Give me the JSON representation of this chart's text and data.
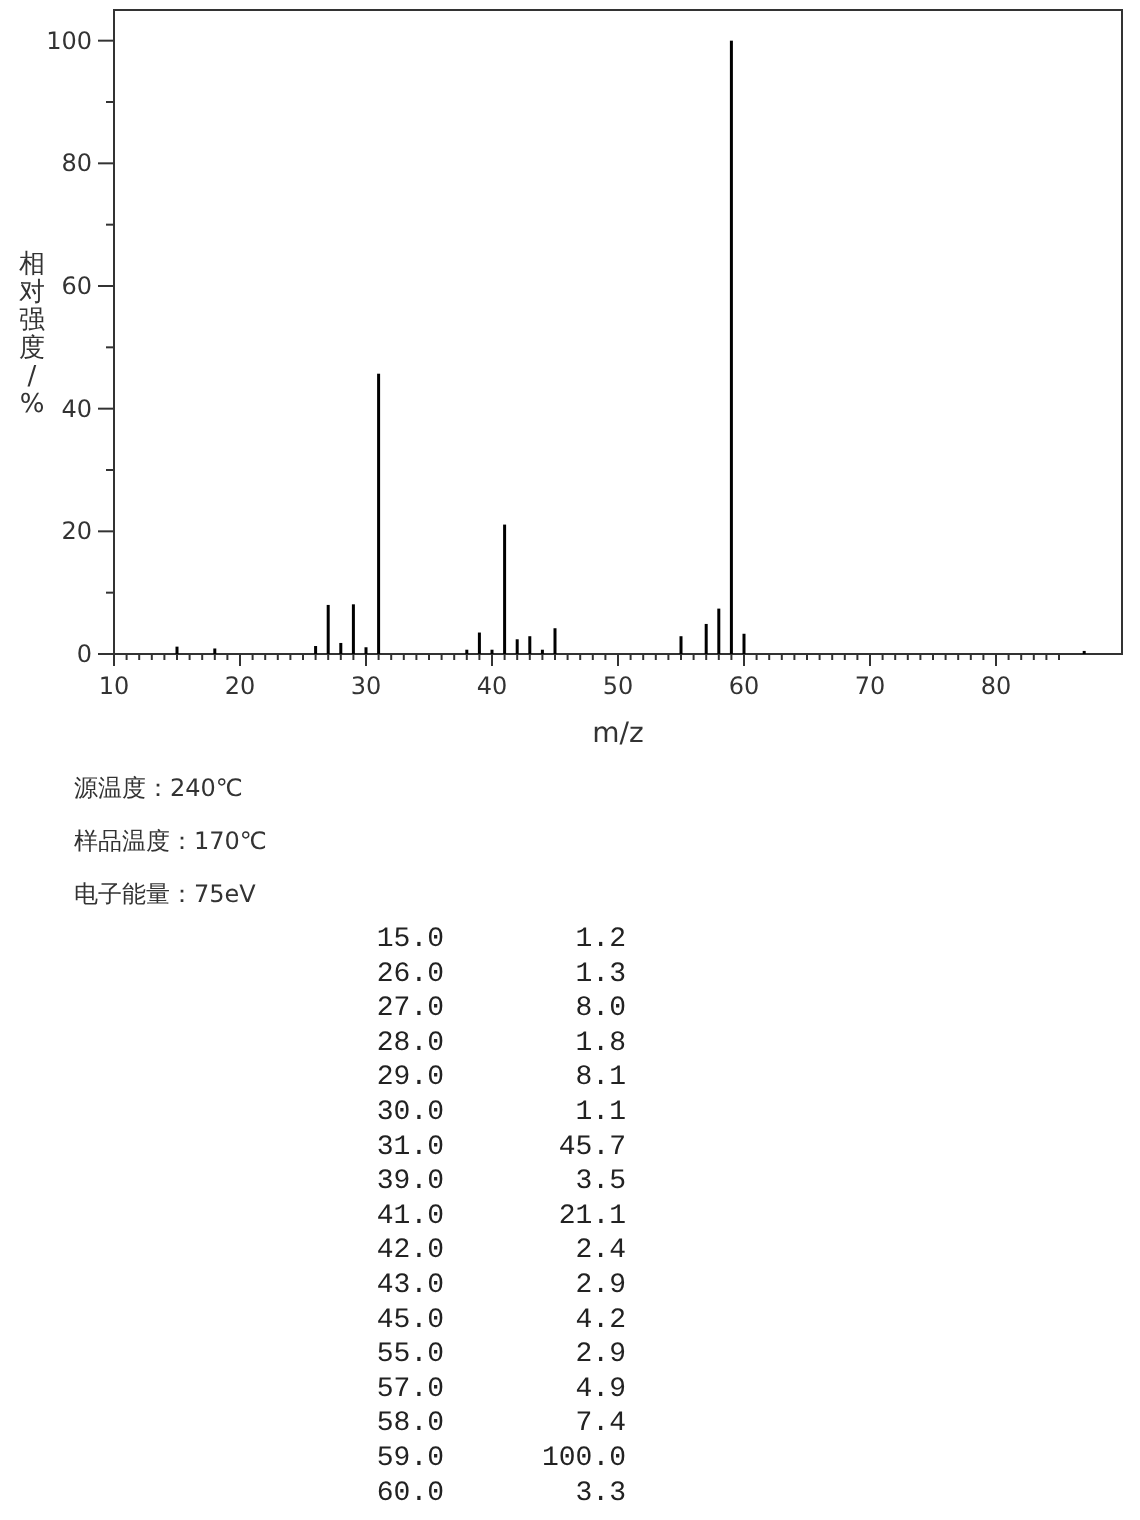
{
  "chart_data": [
    {
      "type": "bar",
      "color": "#000000",
      "xlabel": "m/z",
      "ylabel": "相对强度/%",
      "x": [
        15,
        18,
        26,
        27,
        28,
        29,
        30,
        31,
        38,
        39,
        40,
        41,
        42,
        43,
        44,
        45,
        55,
        57,
        58,
        59,
        60,
        87
      ],
      "values": [
        1.2,
        0.9,
        1.3,
        8.0,
        1.8,
        8.1,
        1.1,
        45.7,
        0.7,
        3.5,
        0.7,
        21.1,
        2.4,
        2.9,
        0.7,
        4.2,
        2.9,
        4.9,
        7.4,
        100.0,
        3.3,
        0.5
      ],
      "xlim": [
        10,
        90
      ],
      "ylim": [
        0,
        105
      ],
      "xticks": [
        10,
        {
          "value": 11,
          "label": null
        },
        {
          "value": 12,
          "label": null
        },
        {
          "value": 13,
          "label": null
        },
        {
          "value": 14,
          "label": null
        },
        {
          "value": 15,
          "label": null
        },
        {
          "value": 16,
          "label": null
        },
        {
          "value": 17,
          "label": null
        },
        {
          "value": 18,
          "label": null
        },
        {
          "value": 19,
          "label": null
        },
        20,
        {
          "value": 21,
          "label": null
        },
        {
          "value": 22,
          "label": null
        },
        {
          "value": 23,
          "label": null
        },
        {
          "value": 24,
          "label": null
        },
        {
          "value": 25,
          "label": null
        },
        {
          "value": 26,
          "label": null
        },
        {
          "value": 27,
          "label": null
        },
        {
          "value": 28,
          "label": null
        },
        {
          "value": 29,
          "label": null
        },
        30,
        {
          "value": 31,
          "label": null
        },
        {
          "value": 32,
          "label": null
        },
        {
          "value": 33,
          "label": null
        },
        {
          "value": 34,
          "label": null
        },
        {
          "value": 35,
          "label": null
        },
        {
          "value": 36,
          "label": null
        },
        {
          "value": 37,
          "label": null
        },
        {
          "value": 38,
          "label": null
        },
        {
          "value": 39,
          "label": null
        },
        40,
        {
          "value": 41,
          "label": null
        },
        {
          "value": 42,
          "label": null
        },
        {
          "value": 43,
          "label": null
        },
        {
          "value": 44,
          "label": null
        },
        {
          "value": 45,
          "label": null
        },
        {
          "value": 46,
          "label": null
        },
        {
          "value": 47,
          "label": null
        },
        {
          "value": 48,
          "label": null
        },
        {
          "value": 49,
          "label": null
        },
        50,
        {
          "value": 51,
          "label": null
        },
        {
          "value": 52,
          "label": null
        },
        {
          "value": 53,
          "label": null
        },
        {
          "value": 54,
          "label": null
        },
        {
          "value": 55,
          "label": null
        },
        {
          "value": 56,
          "label": null
        },
        {
          "value": 57,
          "label": null
        },
        {
          "value": 58,
          "label": null
        },
        {
          "value": 59,
          "label": null
        },
        60,
        {
          "value": 61,
          "label": null
        },
        {
          "value": 62,
          "label": null
        },
        {
          "value": 63,
          "label": null
        },
        {
          "value": 64,
          "label": null
        },
        {
          "value": 65,
          "label": null
        },
        {
          "value": 66,
          "label": null
        },
        {
          "value": 67,
          "label": null
        },
        {
          "value": 68,
          "label": null
        },
        {
          "value": 69,
          "label": null
        },
        70,
        {
          "value": 71,
          "label": null
        },
        {
          "value": 72,
          "label": null
        },
        {
          "value": 73,
          "label": null
        },
        {
          "value": 74,
          "label": null
        },
        {
          "value": 75,
          "label": null
        },
        {
          "value": 76,
          "label": null
        },
        {
          "value": 77,
          "label": null
        },
        {
          "value": 78,
          "label": null
        },
        {
          "value": 79,
          "label": null
        },
        80,
        {
          "value": 81,
          "label": null
        },
        {
          "value": 82,
          "label": null
        },
        {
          "value": 83,
          "label": null
        },
        {
          "value": 84,
          "label": null
        },
        {
          "value": 85,
          "label": null
        }
      ],
      "yticks": [
        0,
        {
          "value": 10,
          "label": null
        },
        20,
        {
          "value": 30,
          "label": null
        },
        40,
        {
          "value": 50,
          "label": null
        },
        60,
        {
          "value": 70,
          "label": null
        },
        80,
        {
          "value": 90,
          "label": null
        },
        100
      ],
      "annotations": [
        "源温度：240℃",
        "样品温度：170℃",
        "电子能量：75eV"
      ]
    },
    {
      "type": "other",
      "categories": [
        "15.0",
        "26.0",
        "27.0",
        "28.0",
        "29.0",
        "30.0",
        "31.0",
        "39.0",
        "41.0",
        "42.0",
        "43.0",
        "45.0",
        "55.0",
        "57.0",
        "58.0",
        "59.0",
        "60.0"
      ],
      "value_labels": [
        "1.2",
        "1.3",
        "8.0",
        "1.8",
        "8.1",
        "1.1",
        "45.7",
        "3.5",
        "21.1",
        "2.4",
        "2.9",
        "4.2",
        "2.9",
        "4.9",
        "7.4",
        "100.0",
        "3.3"
      ]
    }
  ]
}
